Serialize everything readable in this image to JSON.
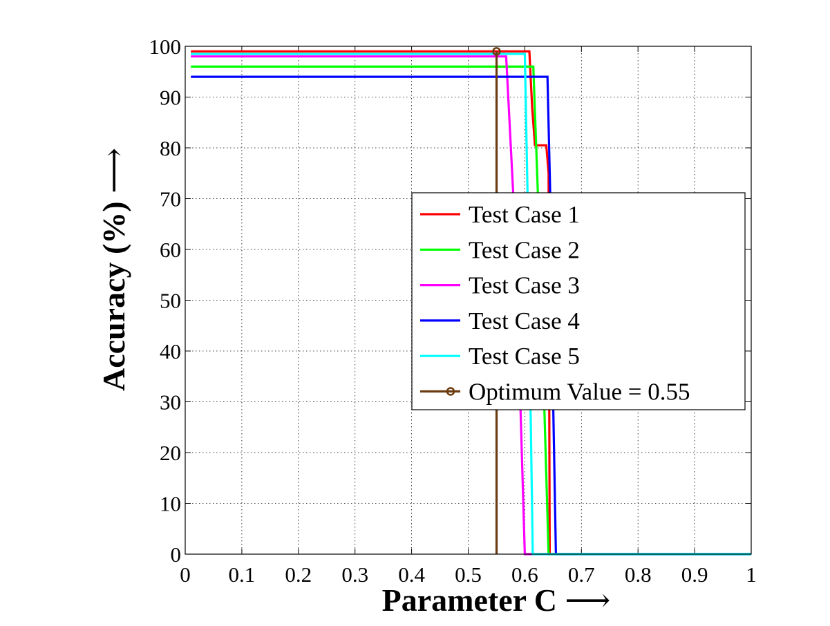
{
  "chart_data": {
    "type": "line",
    "xlabel": "Parameter C",
    "xlabel_arrow": "⟶",
    "ylabel": "Accuracy (%)",
    "ylabel_arrow": "⟶",
    "xlim": [
      0,
      1
    ],
    "ylim": [
      0,
      100
    ],
    "x_ticks": [
      0,
      0.1,
      0.2,
      0.3,
      0.4,
      0.5,
      0.6,
      0.7,
      0.8,
      0.9,
      1
    ],
    "x_tick_labels": [
      "0",
      "0.1",
      "0.2",
      "0.3",
      "0.4",
      "0.5",
      "0.6",
      "0.7",
      "0.8",
      "0.9",
      "1"
    ],
    "y_ticks": [
      0,
      10,
      20,
      30,
      40,
      50,
      60,
      70,
      80,
      90,
      100
    ],
    "y_tick_labels": [
      "0",
      "10",
      "20",
      "30",
      "40",
      "50",
      "60",
      "70",
      "80",
      "90",
      "100"
    ],
    "grid": true,
    "grid_style": "dotted",
    "legend_position": "right",
    "series": [
      {
        "name": "Test Case 1",
        "color": "#ff0000",
        "x": [
          0.01,
          0.608,
          0.613,
          0.618,
          0.638,
          0.642,
          0.644,
          0.65,
          0.655,
          1.0
        ],
        "y": [
          99,
          99,
          88,
          80.5,
          80.5,
          75,
          0,
          0,
          0,
          0
        ]
      },
      {
        "name": "Test Case 2",
        "color": "#00ff00",
        "x": [
          0.01,
          0.615,
          0.625,
          0.642,
          0.65,
          1.0
        ],
        "y": [
          96,
          96,
          65,
          0,
          0,
          0
        ]
      },
      {
        "name": "Test Case 3",
        "color": "#ff00ff",
        "x": [
          0.01,
          0.567,
          0.58,
          0.588,
          0.6,
          0.603,
          1.0
        ],
        "y": [
          98,
          98,
          70,
          45,
          0,
          0,
          0
        ]
      },
      {
        "name": "Test Case 4",
        "color": "#0000ff",
        "x": [
          0.01,
          0.36,
          0.64,
          0.645,
          0.65,
          0.655,
          1.0
        ],
        "y": [
          94,
          94,
          94,
          70,
          30,
          0,
          0
        ]
      },
      {
        "name": "Test Case 5",
        "color": "#00ffff",
        "x": [
          0.01,
          0.6,
          0.605,
          0.61,
          0.614,
          1.0
        ],
        "y": [
          98.5,
          98.5,
          70,
          30,
          0,
          0
        ]
      },
      {
        "name": "Optimum Value = 0.55",
        "color": "#6b3a0f",
        "marker": "circle",
        "x": [
          0.55,
          0.55
        ],
        "y": [
          0,
          99
        ]
      }
    ]
  }
}
